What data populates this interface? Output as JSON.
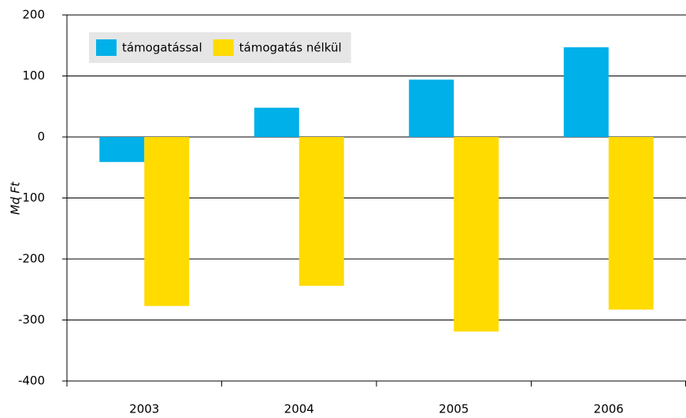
{
  "chart_data": {
    "type": "bar",
    "y_label": "Md Ft",
    "categories": [
      "2003",
      "2004",
      "2005",
      "2006"
    ],
    "series": [
      {
        "name": "támogatással",
        "color": "#00b0e8",
        "values": [
          -41,
          48,
          94,
          147
        ]
      },
      {
        "name": "támogatás nélkül",
        "color": "#ffdb00",
        "values": [
          -277,
          -244,
          -319,
          -283
        ]
      }
    ],
    "ylim": [
      -400,
      200
    ],
    "yticks": [
      -400,
      -300,
      -200,
      -100,
      0,
      100,
      200
    ],
    "grid": true,
    "legend": "top-left"
  }
}
